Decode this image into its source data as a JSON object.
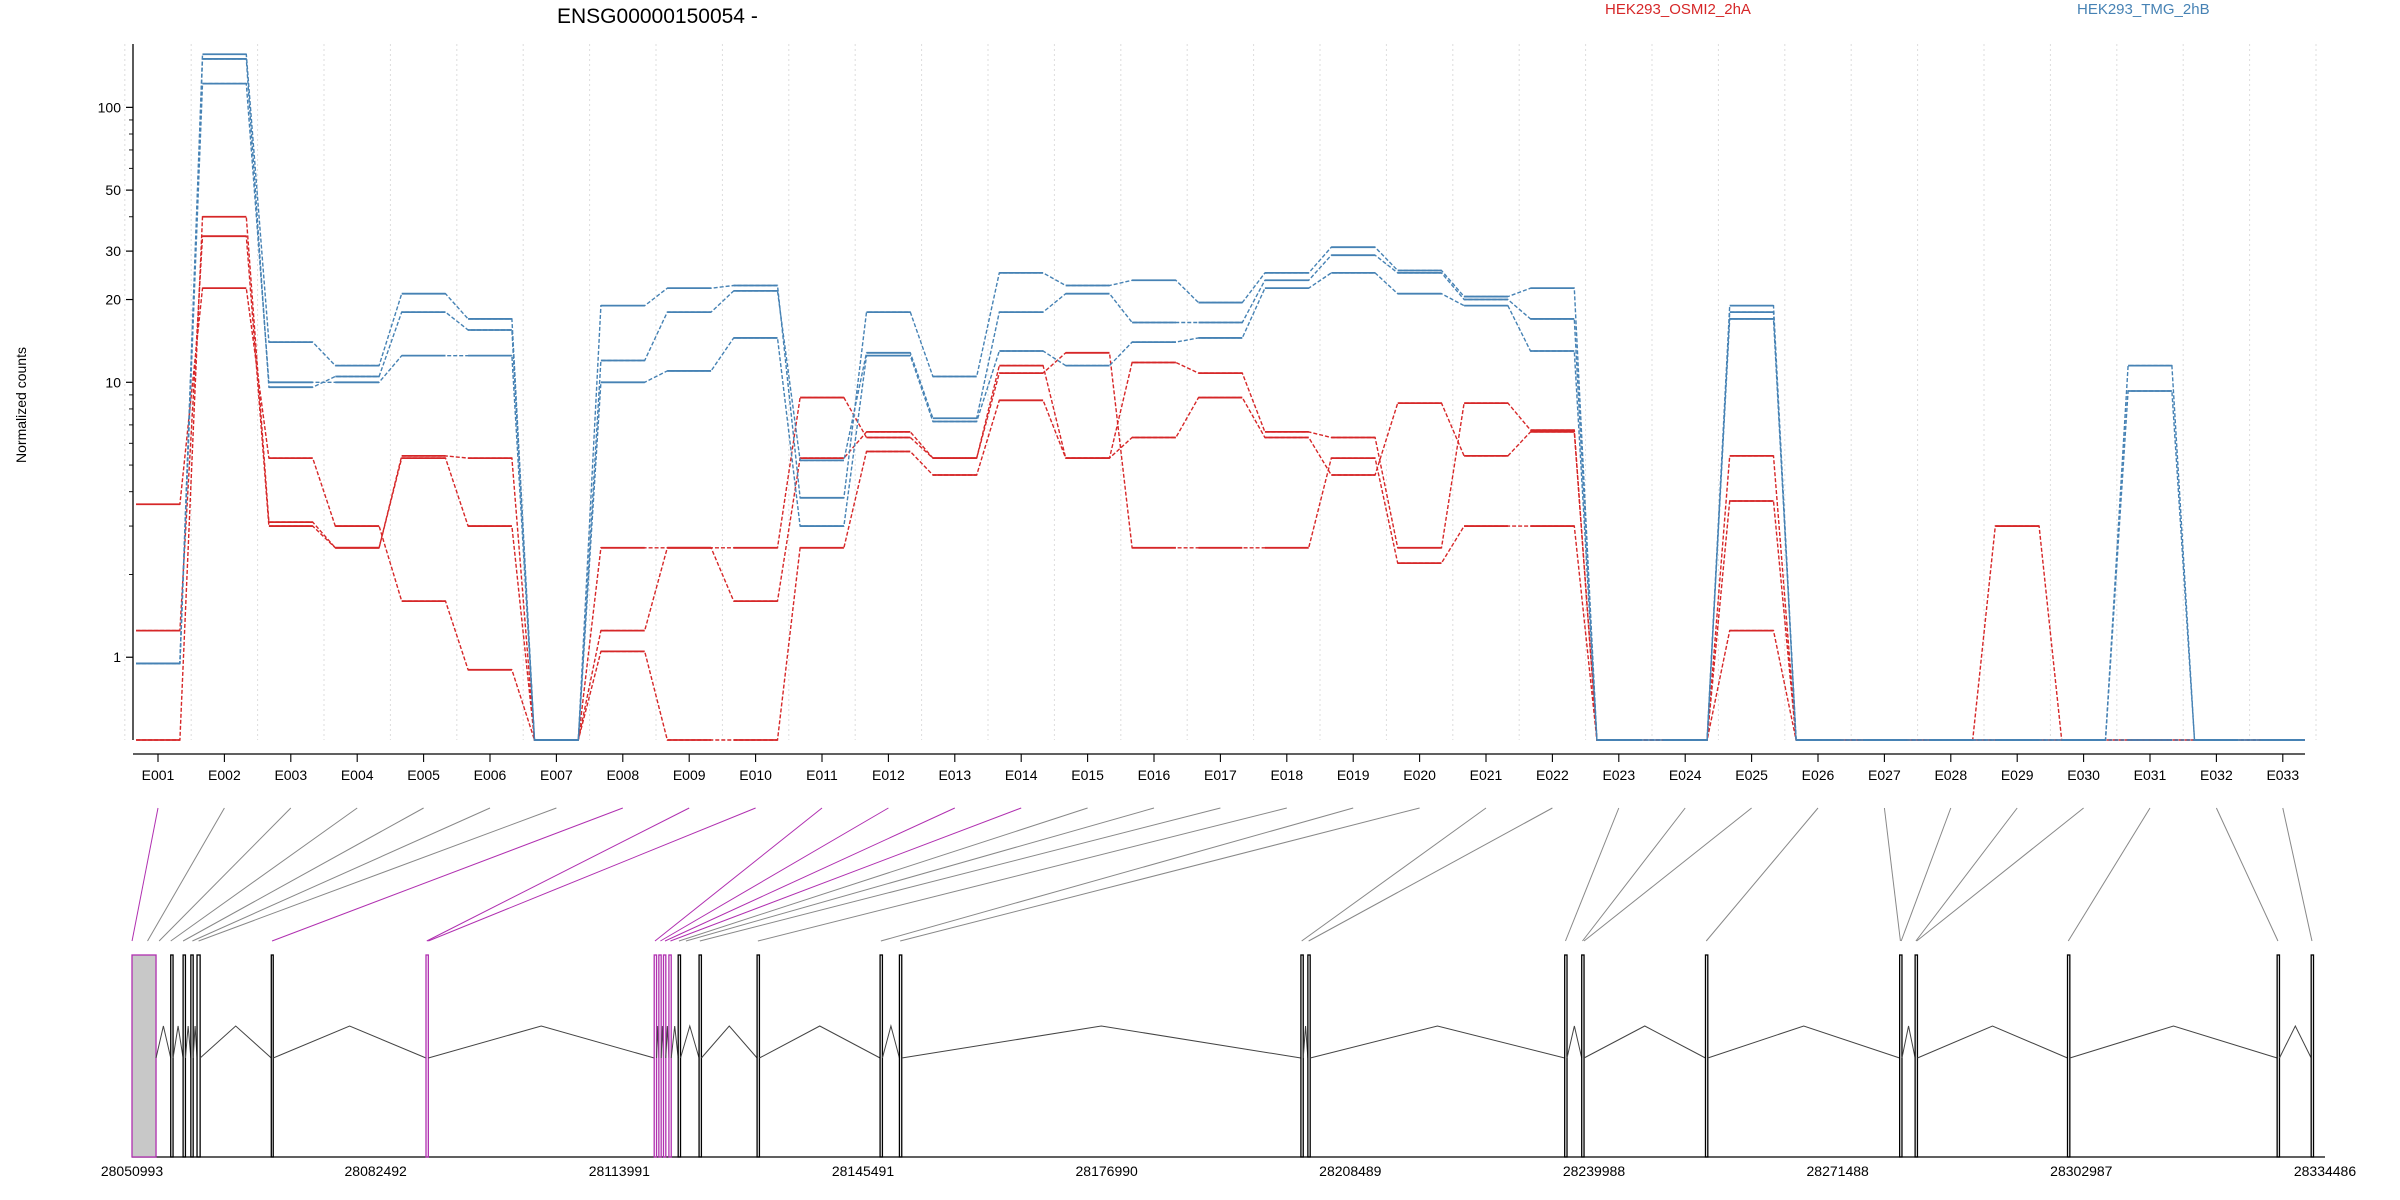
{
  "chart_data": {
    "type": "line",
    "title": "ENSG00000150054 -",
    "ylabel": "Normalized counts",
    "yscale": "log",
    "ylim": [
      0.5,
      170
    ],
    "yticks": [
      {
        "value": 1,
        "label": "1"
      },
      {
        "value": 10,
        "label": "10"
      },
      {
        "value": 20,
        "label": "20"
      },
      {
        "value": 30,
        "label": "30"
      },
      {
        "value": 50,
        "label": "50"
      },
      {
        "value": 100,
        "label": "100"
      }
    ],
    "minor_yticks": [
      2,
      3,
      4,
      5,
      6,
      7,
      8,
      9,
      40,
      60,
      70,
      80,
      90
    ],
    "categories": [
      "E001",
      "E002",
      "E003",
      "E004",
      "E005",
      "E006",
      "E007",
      "E008",
      "E009",
      "E010",
      "E011",
      "E012",
      "E013",
      "E014",
      "E015",
      "E016",
      "E017",
      "E018",
      "E019",
      "E020",
      "E021",
      "E022",
      "E023",
      "E024",
      "E025",
      "E026",
      "E027",
      "E028",
      "E029",
      "E030",
      "E031",
      "E032",
      "E033"
    ],
    "grid": "vertical dotted",
    "legend": [
      {
        "name": "HEK293_OSMI2_2hA",
        "color": "#d62728"
      },
      {
        "name": "HEK293_TMG_2hB",
        "color": "#4682b4"
      }
    ],
    "series": [
      {
        "color": "#d62728",
        "values": [
          3.6,
          22,
          5.3,
          3.0,
          1.6,
          0.9,
          0.5,
          1.05,
          0.5,
          0.5,
          2.5,
          5.6,
          4.6,
          8.6,
          5.3,
          6.3,
          8.8,
          6.3,
          4.6,
          8.4,
          5.4,
          6.6,
          0.5,
          0.5,
          1.25,
          0.5,
          0.5,
          0.5,
          0.5,
          0.5,
          0.5,
          0.5,
          0.5
        ]
      },
      {
        "color": "#d62728",
        "values": [
          1.25,
          34,
          3.0,
          2.5,
          5.3,
          3.0,
          0.5,
          1.25,
          2.5,
          2.5,
          8.8,
          6.3,
          5.3,
          10.8,
          12.8,
          2.5,
          2.5,
          2.5,
          5.3,
          2.2,
          3.0,
          3.0,
          0.5,
          0.5,
          3.7,
          0.5,
          0.5,
          0.5,
          0.5,
          0.5,
          0.5,
          0.5,
          0.5
        ]
      },
      {
        "color": "#d62728",
        "values": [
          0.5,
          40,
          3.1,
          2.5,
          5.4,
          5.3,
          0.5,
          2.5,
          2.5,
          1.6,
          5.3,
          6.6,
          5.3,
          11.5,
          5.3,
          11.8,
          10.8,
          6.6,
          6.3,
          2.5,
          8.4,
          6.7,
          0.5,
          0.5,
          5.4,
          0.5,
          0.5,
          0.5,
          3.0,
          0.5,
          0.5,
          0.5,
          0.5
        ]
      },
      {
        "color": "#4682b4",
        "values": [
          0.95,
          122,
          10,
          10,
          12.5,
          12.5,
          0.5,
          10,
          11,
          14.5,
          3.0,
          12.5,
          7.2,
          13,
          11.5,
          14,
          14.5,
          22,
          25,
          21,
          19,
          13,
          0.5,
          0.5,
          17,
          0.5,
          0.5,
          0.5,
          0.5,
          0.5,
          0.5,
          0.5,
          0.5
        ]
      },
      {
        "color": "#4682b4",
        "values": [
          0.95,
          150,
          9.6,
          10.5,
          18,
          15.5,
          0.5,
          12,
          18,
          21.5,
          5.2,
          12.8,
          7.4,
          18,
          21,
          16.5,
          16.5,
          23.5,
          29,
          25,
          20,
          17,
          0.5,
          0.5,
          18,
          0.5,
          0.5,
          0.5,
          0.5,
          0.5,
          9.3,
          0.5,
          0.5
        ]
      },
      {
        "color": "#4682b4",
        "values": [
          0.95,
          156,
          14,
          11.5,
          21,
          17,
          0.5,
          19,
          22,
          22.5,
          3.8,
          18,
          10.5,
          25,
          22.5,
          23.5,
          19.5,
          25,
          31,
          25.5,
          20.5,
          22,
          0.5,
          0.5,
          19,
          0.5,
          0.5,
          0.5,
          0.5,
          0.5,
          11.5,
          0.5,
          0.5
        ]
      }
    ],
    "genomic_axis": {
      "ticks": [
        "28050993",
        "28082492",
        "28113991",
        "28145491",
        "28176990",
        "28208489",
        "28239988",
        "28271488",
        "28302987",
        "28334486"
      ],
      "start": 28050993,
      "end": 28334486
    },
    "exons": [
      {
        "start": 28050993,
        "end": 28054100,
        "highlight": true,
        "filled": true
      },
      {
        "start": 28056000,
        "end": 28056300
      },
      {
        "start": 28057600,
        "end": 28057900
      },
      {
        "start": 28058600,
        "end": 28058900
      },
      {
        "start": 28059400,
        "end": 28059800
      },
      {
        "start": 28069000,
        "end": 28069250
      },
      {
        "start": 28089000,
        "end": 28089300,
        "highlight": true
      },
      {
        "start": 28118500,
        "end": 28118800,
        "highlight": true
      },
      {
        "start": 28119100,
        "end": 28119400,
        "highlight": true
      },
      {
        "start": 28119700,
        "end": 28120000,
        "highlight": true
      },
      {
        "start": 28120400,
        "end": 28120700,
        "highlight": true
      },
      {
        "start": 28121600,
        "end": 28121900
      },
      {
        "start": 28124300,
        "end": 28124600
      },
      {
        "start": 28131800,
        "end": 28132100
      },
      {
        "start": 28147700,
        "end": 28148000
      },
      {
        "start": 28150200,
        "end": 28150500
      },
      {
        "start": 28202100,
        "end": 28202400
      },
      {
        "start": 28203000,
        "end": 28203300
      },
      {
        "start": 28236200,
        "end": 28236500
      },
      {
        "start": 28238400,
        "end": 28238700
      },
      {
        "start": 28254400,
        "end": 28254700
      },
      {
        "start": 28279500,
        "end": 28279800
      },
      {
        "start": 28281500,
        "end": 28281800
      },
      {
        "start": 28301200,
        "end": 28301500
      },
      {
        "start": 28328300,
        "end": 28328600
      },
      {
        "start": 28332700,
        "end": 28333000
      }
    ],
    "exon_links": [
      {
        "exon": "E001",
        "pos": 28051000,
        "highlight": true
      },
      {
        "exon": "E002",
        "pos": 28053000
      },
      {
        "exon": "E003",
        "pos": 28054500
      },
      {
        "exon": "E004",
        "pos": 28056000
      },
      {
        "exon": "E005",
        "pos": 28057600
      },
      {
        "exon": "E006",
        "pos": 28058800
      },
      {
        "exon": "E007",
        "pos": 28059600
      },
      {
        "exon": "E008",
        "pos": 28069100,
        "highlight": true
      },
      {
        "exon": "E009",
        "pos": 28089100,
        "highlight": true
      },
      {
        "exon": "E010",
        "pos": 28089300,
        "highlight": true
      },
      {
        "exon": "E011",
        "pos": 28118600,
        "highlight": true
      },
      {
        "exon": "E012",
        "pos": 28119300,
        "highlight": true
      },
      {
        "exon": "E013",
        "pos": 28119900,
        "highlight": true
      },
      {
        "exon": "E014",
        "pos": 28120600,
        "highlight": true
      },
      {
        "exon": "E015",
        "pos": 28121700
      },
      {
        "exon": "E016",
        "pos": 28122600
      },
      {
        "exon": "E017",
        "pos": 28124400
      },
      {
        "exon": "E018",
        "pos": 28131900
      },
      {
        "exon": "E019",
        "pos": 28147800
      },
      {
        "exon": "E020",
        "pos": 28150300
      },
      {
        "exon": "E021",
        "pos": 28202200
      },
      {
        "exon": "E022",
        "pos": 28203100
      },
      {
        "exon": "E023",
        "pos": 28236300
      },
      {
        "exon": "E024",
        "pos": 28238500
      },
      {
        "exon": "E025",
        "pos": 28238700
      },
      {
        "exon": "E026",
        "pos": 28254500
      },
      {
        "exon": "E027",
        "pos": 28279600
      },
      {
        "exon": "E028",
        "pos": 28279700
      },
      {
        "exon": "E029",
        "pos": 28281600
      },
      {
        "exon": "E030",
        "pos": 28281700
      },
      {
        "exon": "E031",
        "pos": 28301300
      },
      {
        "exon": "E032",
        "pos": 28328400
      },
      {
        "exon": "E033",
        "pos": 28332800
      }
    ],
    "colors": {
      "osmi": "#d62728",
      "tmg": "#4682b4",
      "link": "#888888",
      "link_highlight": "#b030b0",
      "exon_fill": "#c8c8c8"
    }
  }
}
